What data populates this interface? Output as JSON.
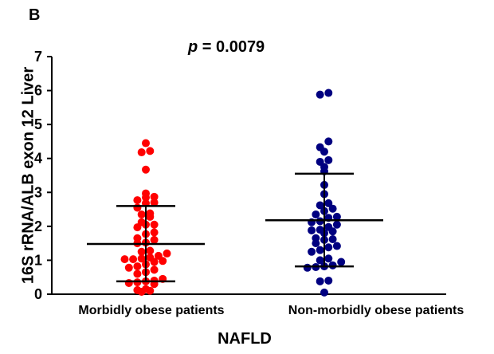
{
  "panel_letter": "B",
  "annotation": {
    "p_symbol": "p",
    "p_rest": " = 0.0079"
  },
  "chart_data": {
    "type": "scatter",
    "ylabel": "16S rRNA/ALB exon 12 Liver",
    "xlabel": "NAFLD",
    "ylim": [
      0,
      7
    ],
    "yticks": [
      "0",
      "1",
      "2",
      "3",
      "4",
      "5",
      "6",
      "7"
    ],
    "categories": [
      "Morbidly obese patients",
      "Non-morbidly obese patients"
    ],
    "grid": false,
    "series": [
      {
        "color": "#ff0000",
        "mean": 1.48,
        "sd_low": 0.38,
        "sd_high": 2.6,
        "values": [
          4.45,
          4.22,
          4.18,
          3.67,
          2.97,
          2.87,
          2.85,
          2.77,
          2.7,
          2.68,
          2.55,
          2.38,
          2.35,
          2.28,
          2.12,
          2.05,
          2.05,
          1.97,
          1.82,
          1.77,
          1.65,
          1.6,
          1.52,
          1.5,
          1.28,
          1.25,
          1.2,
          1.13,
          1.08,
          1.05,
          1.03,
          1.03,
          0.98,
          0.95,
          0.88,
          0.82,
          0.78,
          0.72,
          0.65,
          0.6,
          0.45,
          0.4,
          0.38,
          0.35,
          0.33,
          0.3,
          0.15,
          0.12,
          0.1,
          0.07
        ]
      },
      {
        "color": "#000080",
        "mean": 2.18,
        "sd_low": 0.82,
        "sd_high": 3.55,
        "values": [
          5.93,
          5.88,
          4.5,
          4.33,
          4.2,
          3.95,
          3.9,
          3.75,
          3.62,
          3.22,
          2.95,
          2.68,
          2.62,
          2.52,
          2.45,
          2.35,
          2.28,
          2.25,
          2.15,
          2.12,
          2.05,
          1.98,
          1.9,
          1.88,
          1.85,
          1.8,
          1.65,
          1.62,
          1.6,
          1.5,
          1.42,
          1.38,
          1.3,
          1.25,
          1.05,
          1.0,
          0.95,
          0.85,
          0.82,
          0.78,
          0.8,
          0.4,
          0.38,
          0.05
        ]
      }
    ]
  }
}
